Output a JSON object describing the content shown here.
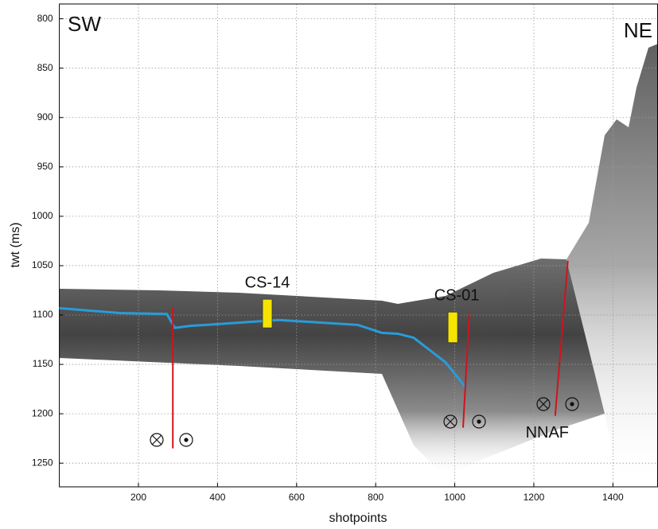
{
  "chart_data": {
    "type": "profile",
    "xlabel": "shotpoints",
    "ylabel": "twt (ms)",
    "xlim": [
      0,
      1514
    ],
    "ylim": [
      785,
      1274
    ],
    "y_inverted": true,
    "grid": true,
    "xticks": [
      200,
      400,
      600,
      800,
      1000,
      1200,
      1400
    ],
    "yticks": [
      800,
      850,
      900,
      950,
      1000,
      1050,
      1100,
      1150,
      1200,
      1250
    ],
    "annotations": {
      "left": "SW",
      "right": "NE"
    },
    "horizon": {
      "color": "#2a9bd8",
      "x": [
        0,
        152,
        272,
        292,
        332,
        554,
        755,
        815,
        856,
        896,
        977,
        1027
      ],
      "y": [
        1093,
        1098,
        1099,
        1113,
        1111,
        1105,
        1110,
        1118,
        1119,
        1123,
        1148,
        1173
      ]
    },
    "cores": [
      {
        "name": "CS-14",
        "x": 526,
        "top": 1084,
        "bottom": 1113
      },
      {
        "name": "CS-01",
        "x": 995,
        "top": 1097,
        "bottom": 1128
      }
    ],
    "core_color": "#f5e400",
    "fault_color": "#d0141c",
    "faults": [
      {
        "x": [
          287,
          287
        ],
        "y": [
          1092,
          1235
        ]
      },
      {
        "x": [
          1037,
          1021
        ],
        "y": [
          1098,
          1214
        ]
      },
      {
        "name": "NNAF",
        "x": [
          1286,
          1254
        ],
        "y": [
          1045,
          1202
        ]
      }
    ]
  }
}
